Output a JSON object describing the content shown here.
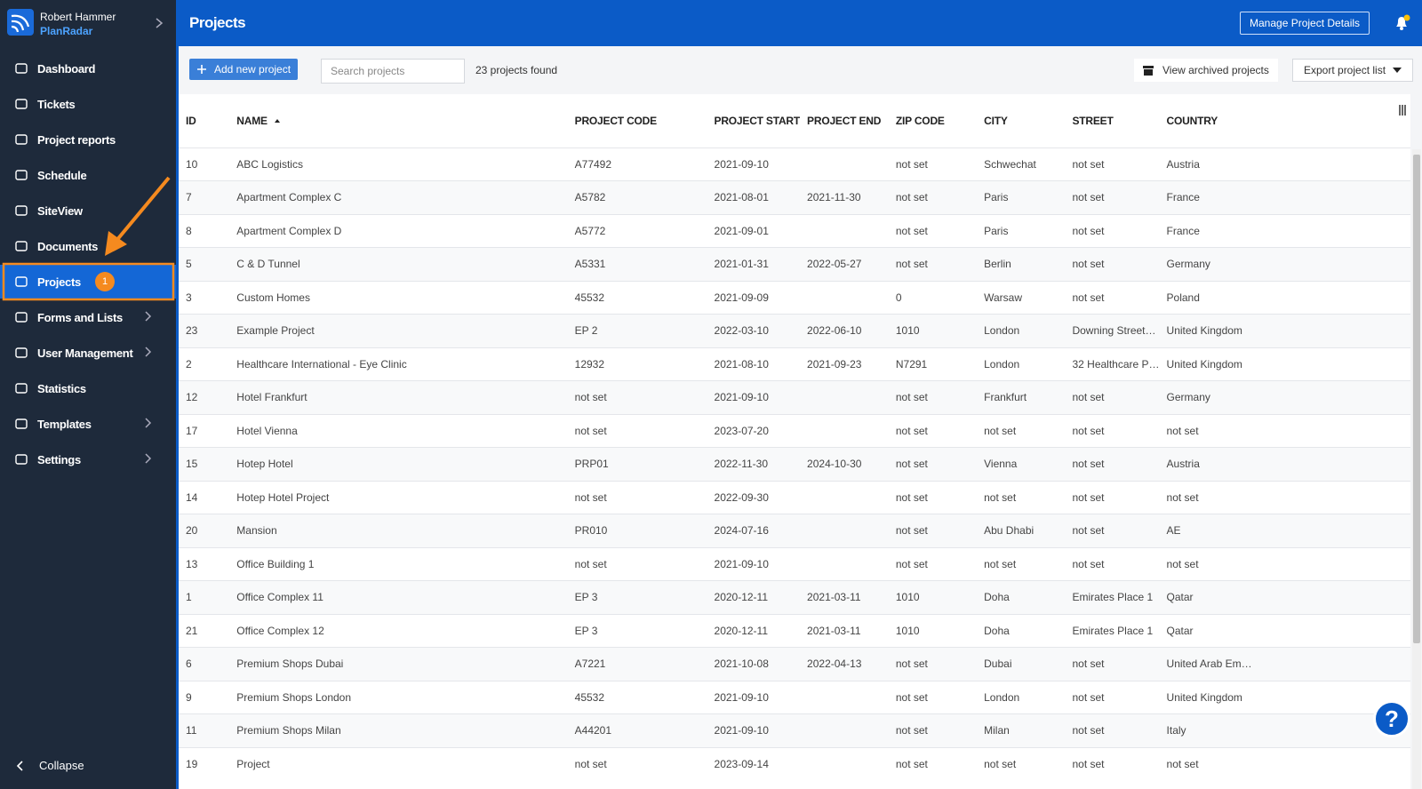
{
  "user": {
    "name": "Robert Hammer",
    "company": "PlanRadar"
  },
  "nav": [
    {
      "label": "Dashboard",
      "has_submenu": false
    },
    {
      "label": "Tickets",
      "has_submenu": false
    },
    {
      "label": "Project reports",
      "has_submenu": false
    },
    {
      "label": "Schedule",
      "has_submenu": false
    },
    {
      "label": "SiteView",
      "has_submenu": false
    },
    {
      "label": "Documents",
      "has_submenu": false
    },
    {
      "label": "Projects",
      "has_submenu": false,
      "active": true,
      "badge": "1"
    },
    {
      "label": "Forms and Lists",
      "has_submenu": true
    },
    {
      "label": "User Management",
      "has_submenu": true
    },
    {
      "label": "Statistics",
      "has_submenu": false
    },
    {
      "label": "Templates",
      "has_submenu": true
    },
    {
      "label": "Settings",
      "has_submenu": true
    }
  ],
  "collapse": "Collapse",
  "header": {
    "title": "Projects",
    "button": "Manage Project Details"
  },
  "toolbar": {
    "add": "Add new project",
    "search_placeholder": "Search projects",
    "count": "23 projects found",
    "archived": "View archived projects",
    "export": "Export project list"
  },
  "help": "?",
  "table": {
    "columns": [
      "ID",
      "NAME",
      "PROJECT CODE",
      "PROJECT START",
      "PROJECT END",
      "ZIP CODE",
      "CITY",
      "STREET",
      "COUNTRY"
    ],
    "rows": [
      [
        10,
        "ABC Logistics",
        "A77492",
        "2021-09-10",
        null,
        "not set",
        "Schwechat",
        "not set",
        "Austria"
      ],
      [
        7,
        "Apartment Complex C",
        "A5782",
        "2021-08-01",
        "2021-11-30",
        "not set",
        "Paris",
        "not set",
        "France"
      ],
      [
        8,
        "Apartment Complex D",
        "A5772",
        "2021-09-01",
        null,
        "not set",
        "Paris",
        "not set",
        "France"
      ],
      [
        5,
        "C & D Tunnel",
        "A5331",
        "2021-01-31",
        "2022-05-27",
        "not set",
        "Berlin",
        "not set",
        "Germany"
      ],
      [
        3,
        "Custom Homes",
        "45532",
        "2021-09-09",
        null,
        "0",
        "Warsaw",
        "not set",
        "Poland"
      ],
      [
        23,
        "Example Project",
        "EP 2",
        "2022-03-10",
        "2022-06-10",
        "1010",
        "London",
        "Downing Street…",
        "United Kingdom"
      ],
      [
        2,
        "Healthcare International - Eye Clinic",
        "12932",
        "2021-08-10",
        "2021-09-23",
        "N7291",
        "London",
        "32 Healthcare P…",
        "United Kingdom"
      ],
      [
        12,
        "Hotel Frankfurt",
        "not set",
        "2021-09-10",
        null,
        "not set",
        "Frankfurt",
        "not set",
        "Germany"
      ],
      [
        17,
        "Hotel Vienna",
        "not set",
        "2023-07-20",
        null,
        "not set",
        "not set",
        "not set",
        "not set"
      ],
      [
        15,
        "Hotep Hotel",
        "PRP01",
        "2022-11-30",
        "2024-10-30",
        "not set",
        "Vienna",
        "not set",
        "Austria"
      ],
      [
        14,
        "Hotep Hotel Project",
        "not set",
        "2022-09-30",
        null,
        "not set",
        "not set",
        "not set",
        "not set"
      ],
      [
        20,
        "Mansion",
        "PR010",
        "2024-07-16",
        null,
        "not set",
        "Abu Dhabi",
        "not set",
        "AE"
      ],
      [
        13,
        "Office Building 1",
        "not set",
        "2021-09-10",
        null,
        "not set",
        "not set",
        "not set",
        "not set"
      ],
      [
        1,
        "Office Complex 11",
        "EP 3",
        "2020-12-11",
        "2021-03-11",
        "1010",
        "Doha",
        "Emirates Place 1",
        "Qatar"
      ],
      [
        21,
        "Office Complex 12",
        "EP 3",
        "2020-12-11",
        "2021-03-11",
        "1010",
        "Doha",
        "Emirates Place 1",
        "Qatar"
      ],
      [
        6,
        "Premium Shops Dubai",
        "A7221",
        "2021-10-08",
        "2022-04-13",
        "not set",
        "Dubai",
        "not set",
        "United Arab Em…"
      ],
      [
        9,
        "Premium Shops London",
        "45532",
        "2021-09-10",
        null,
        "not set",
        "London",
        "not set",
        "United Kingdom"
      ],
      [
        11,
        "Premium Shops Milan",
        "A44201",
        "2021-09-10",
        null,
        "not set",
        "Milan",
        "not set",
        "Italy"
      ],
      [
        19,
        "Project",
        "not set",
        "2023-09-14",
        null,
        "not set",
        "not set",
        "not set",
        "not set"
      ]
    ]
  }
}
